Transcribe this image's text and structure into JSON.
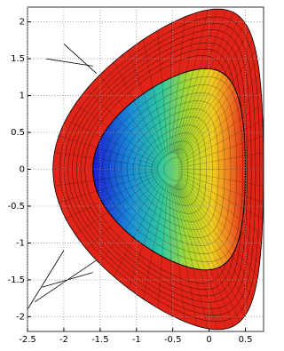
{
  "chart_data": {
    "type": "surface",
    "xlim": [
      -2.5,
      0.75
    ],
    "ylim": [
      -2.2,
      2.2
    ],
    "xticks": [
      -2.5,
      -2,
      -1.5,
      -1,
      -0.5,
      0,
      0.5
    ],
    "yticks": [
      -2,
      -1.5,
      -1,
      -0.5,
      0,
      0.5,
      1,
      1.5,
      2
    ],
    "grid": true
  }
}
